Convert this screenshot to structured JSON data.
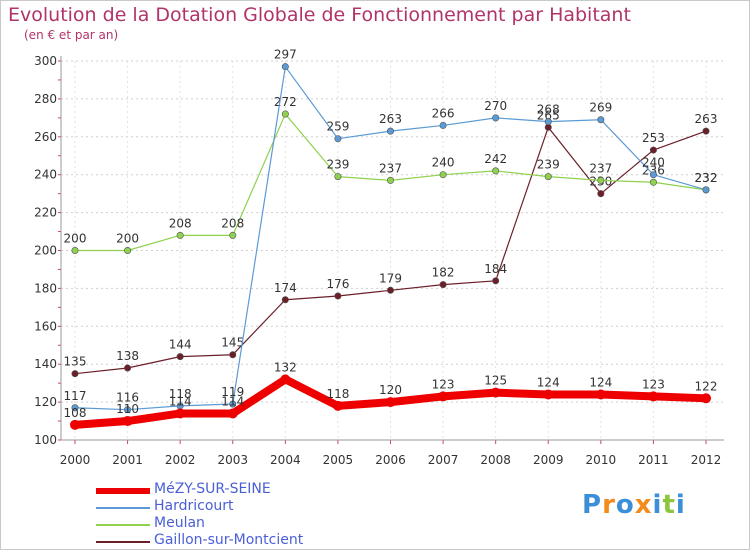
{
  "chart_data": {
    "type": "line",
    "title": "Evolution de la Dotation Globale de Fonctionnement par Habitant",
    "subtitle": "(en € et par an)",
    "x": [
      "2000",
      "2001",
      "2002",
      "2003",
      "2004",
      "2005",
      "2006",
      "2007",
      "2008",
      "2009",
      "2010",
      "2011",
      "2012"
    ],
    "ylim": [
      100,
      300
    ],
    "yticks": [
      100,
      120,
      140,
      160,
      180,
      200,
      220,
      240,
      260,
      280,
      300
    ],
    "grid": true,
    "legend_position": "bottom-left",
    "series": [
      {
        "name": "MéZY-SUR-SEINE",
        "color": "#ee0000",
        "values": [
          108,
          110,
          114,
          114,
          132,
          118,
          120,
          123,
          125,
          124,
          124,
          123,
          122
        ]
      },
      {
        "name": "Hardricourt",
        "color": "#5b9bd5",
        "values": [
          117,
          116,
          118,
          119,
          297,
          259,
          263,
          266,
          270,
          268,
          269,
          240,
          232
        ]
      },
      {
        "name": "Meulan",
        "color": "#8fd14f",
        "values": [
          200,
          200,
          208,
          208,
          272,
          239,
          237,
          240,
          242,
          239,
          237,
          236,
          232
        ]
      },
      {
        "name": "Gaillon-sur-Montcient",
        "color": "#6b1f28",
        "values": [
          135,
          138,
          144,
          145,
          174,
          176,
          179,
          182,
          184,
          265,
          230,
          253,
          263
        ]
      }
    ]
  },
  "logo": {
    "letters": [
      "P",
      "r",
      "o",
      "x",
      "i",
      "t",
      "i"
    ],
    "colors": [
      "#3a8fd8",
      "#f28a1c",
      "#3a8fd8",
      "#f28a1c",
      "#3a8fd8",
      "#8cc63f",
      "#3a8fd8"
    ]
  }
}
